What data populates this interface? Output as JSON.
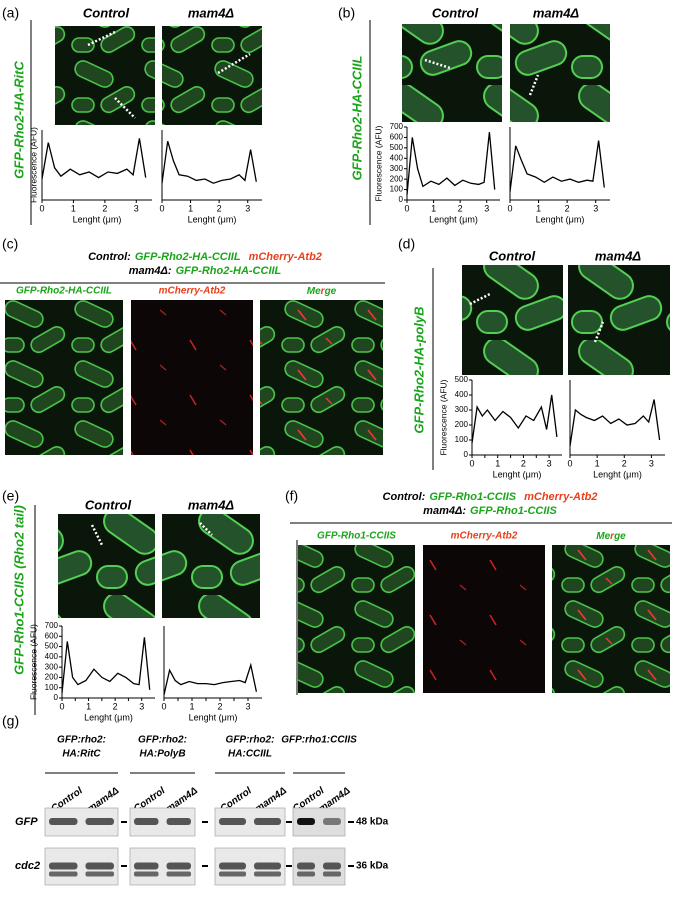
{
  "figure": {
    "a": {
      "letter": "(a)",
      "label": "GFP-Rho2-HA-RitC",
      "control": "Control",
      "mutant": "mam4Δ"
    },
    "b": {
      "letter": "(b)",
      "label": "GFP-Rho2-HA-CCIIL",
      "control": "Control",
      "mutant": "mam4Δ"
    },
    "c": {
      "letter": "(c)",
      "legend": [
        {
          "strain": "Control:",
          "gfp": "GFP-Rho2-HA-CCIIL",
          "red": "mCherry-Atb2"
        },
        {
          "strain": "mam4Δ:",
          "gfp": "GFP-Rho2-HA-CCIIL"
        }
      ],
      "channels": [
        "GFP-Rho2-HA-CCIIL",
        "mCherry-Atb2"
      ],
      "merge": [
        "Me",
        "r",
        "ge"
      ]
    },
    "d": {
      "letter": "(d)",
      "label": "GFP-Rho2-HA-polyB",
      "control": "Control",
      "mutant": "mam4Δ"
    },
    "e": {
      "letter": "(e)",
      "label": "GFP-Rho1-CCIIS (Rho2 tail)",
      "control": "Control",
      "mutant": "mam4Δ"
    },
    "f": {
      "letter": "(f)",
      "legend": [
        {
          "strain": "Control:",
          "gfp": "GFP-Rho1-CCIIS",
          "red": "mCherry-Atb2"
        },
        {
          "strain": "mam4Δ:",
          "gfp": "GFP-Rho1-CCIIS"
        }
      ],
      "channels": [
        "GFP-Rho1-CCIIS",
        "mCherry-Atb2"
      ],
      "merge": [
        "Me",
        "r",
        "ge"
      ]
    },
    "g": {
      "letter": "(g)",
      "groups": [
        [
          "GFP:rho2:",
          "HA:RitC"
        ],
        [
          "GFP:rho2:",
          "HA:PolyB"
        ],
        [
          "GFP:rho2:",
          "HA:CCIIL"
        ],
        [
          "GFP:rho1:CCIIS"
        ]
      ],
      "lanes": [
        "Control",
        "mam4Δ"
      ],
      "rows": [
        "GFP",
        "cdc2"
      ],
      "markers": [
        "48 kDa",
        "36 kDa"
      ]
    }
  },
  "chart_data": [
    {
      "type": "line",
      "ylabel": "Fluorescence (AFU)",
      "xlabel": "Lenght (μm)",
      "color": "#000000",
      "x": [
        0,
        0.2,
        0.4,
        0.6,
        0.9,
        1.2,
        1.5,
        1.8,
        2.1,
        2.4,
        2.7,
        2.9,
        3.1,
        3.3
      ],
      "values": [
        150,
        410,
        230,
        170,
        220,
        180,
        200,
        160,
        200,
        190,
        220,
        180,
        440,
        160
      ],
      "xlim": [
        0,
        3.5
      ],
      "ylim": [
        0,
        500
      ],
      "xticks": [
        0,
        1,
        2,
        3
      ]
    },
    {
      "type": "line",
      "xlabel": "Lenght (μm)",
      "color": "#000000",
      "x": [
        0,
        0.2,
        0.4,
        0.6,
        0.9,
        1.2,
        1.5,
        1.8,
        2.1,
        2.4,
        2.7,
        2.9,
        3.1,
        3.3
      ],
      "values": [
        120,
        420,
        280,
        180,
        170,
        140,
        150,
        120,
        140,
        150,
        180,
        140,
        360,
        130
      ],
      "xlim": [
        0,
        3.5
      ],
      "ylim": [
        0,
        500
      ],
      "xticks": [
        0,
        1,
        2,
        3
      ]
    },
    {
      "type": "line",
      "ylabel": "Fluorescence (AFU)",
      "xlabel": "Lenght (μm)",
      "color": "#000000",
      "x": [
        0,
        0.2,
        0.4,
        0.6,
        0.9,
        1.2,
        1.5,
        1.8,
        2.1,
        2.4,
        2.7,
        2.9,
        3.1,
        3.3
      ],
      "values": [
        50,
        600,
        300,
        130,
        180,
        150,
        210,
        140,
        190,
        160,
        150,
        170,
        650,
        100
      ],
      "xlim": [
        0,
        3.5
      ],
      "ylim": [
        0,
        700
      ],
      "xticks": [
        0,
        1,
        2,
        3
      ],
      "yticks": [
        0,
        100,
        200,
        300,
        400,
        500,
        600,
        700
      ]
    },
    {
      "type": "line",
      "xlabel": "Lenght (μm)",
      "color": "#000000",
      "x": [
        0,
        0.2,
        0.4,
        0.6,
        0.9,
        1.2,
        1.5,
        1.8,
        2.1,
        2.4,
        2.7,
        2.9,
        3.1,
        3.3
      ],
      "values": [
        80,
        520,
        380,
        250,
        220,
        170,
        220,
        180,
        200,
        170,
        190,
        180,
        570,
        120
      ],
      "xlim": [
        0,
        3.5
      ],
      "ylim": [
        0,
        700
      ],
      "xticks": [
        0,
        1,
        2,
        3
      ]
    },
    {
      "type": "line",
      "ylabel": "Fluorescence (AFU)",
      "xlabel": "Lenght (μm)",
      "color": "#000000",
      "x": [
        0,
        0.2,
        0.4,
        0.6,
        0.9,
        1.2,
        1.5,
        1.8,
        2.1,
        2.4,
        2.7,
        2.9,
        3.1,
        3.3
      ],
      "values": [
        80,
        320,
        260,
        300,
        230,
        290,
        250,
        180,
        260,
        230,
        320,
        170,
        400,
        120
      ],
      "xlim": [
        0,
        3.5
      ],
      "ylim": [
        0,
        500
      ],
      "xticks": [
        0,
        0.5,
        1,
        1.5,
        2,
        2.5,
        3
      ],
      "yticks": [
        0,
        100,
        200,
        300,
        400,
        500
      ]
    },
    {
      "type": "line",
      "xlabel": "Lenght (μm)",
      "color": "#000000",
      "x": [
        0,
        0.2,
        0.4,
        0.6,
        0.9,
        1.2,
        1.5,
        1.8,
        2.1,
        2.4,
        2.7,
        2.9,
        3.1,
        3.3
      ],
      "values": [
        60,
        300,
        270,
        250,
        230,
        260,
        210,
        240,
        200,
        210,
        260,
        220,
        370,
        100
      ],
      "xlim": [
        0,
        3.5
      ],
      "ylim": [
        0,
        500
      ],
      "xticks": [
        0,
        1,
        2,
        3
      ]
    },
    {
      "type": "line",
      "ylabel": "Fluorescence (AFU)",
      "xlabel": "Lenght (μm)",
      "color": "#000000",
      "x": [
        0,
        0.2,
        0.4,
        0.6,
        0.9,
        1.2,
        1.5,
        1.8,
        2.1,
        2.4,
        2.7,
        2.9,
        3.1,
        3.3
      ],
      "values": [
        50,
        550,
        200,
        130,
        170,
        280,
        200,
        160,
        240,
        200,
        140,
        130,
        590,
        80
      ],
      "xlim": [
        0,
        3.5
      ],
      "ylim": [
        0,
        700
      ],
      "xticks": [
        0,
        0.5,
        1,
        1.5,
        2,
        2.5,
        3
      ],
      "yticks": [
        0,
        100,
        200,
        300,
        400,
        500,
        600,
        700
      ]
    },
    {
      "type": "line",
      "xlabel": "Lenght (μm)",
      "color": "#000000",
      "x": [
        0,
        0.2,
        0.4,
        0.6,
        0.9,
        1.2,
        1.5,
        1.8,
        2.1,
        2.4,
        2.7,
        2.9,
        3.1,
        3.3
      ],
      "values": [
        30,
        270,
        170,
        130,
        160,
        140,
        140,
        130,
        150,
        160,
        170,
        150,
        320,
        60
      ],
      "xlim": [
        0,
        3.5
      ],
      "ylim": [
        0,
        700
      ],
      "xticks": [
        0,
        0.5,
        1,
        1.5,
        2,
        2.5,
        3
      ]
    }
  ]
}
